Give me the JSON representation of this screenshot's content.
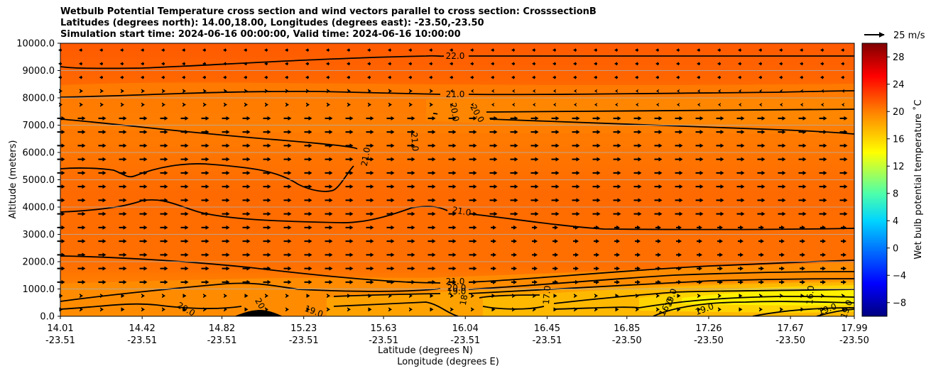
{
  "title_lines": [
    "Wetbulb Potential Temperature cross section and wind vectors parallel to cross section: CrosssectionB",
    "Latitudes (degrees north): 14.00,18.00, Longitudes (degrees east): -23.50,-23.50",
    "Simulation start time: 2024-06-16 00:00:00, Valid time: 2024-06-16 10:00:00"
  ],
  "chart_data": {
    "type": "contourf cross-section with wind vectors",
    "ylabel": "Altitude (meters)",
    "xlabel_lat": "Latitude (degrees N)",
    "xlabel_lon": "Longitude (degrees E)",
    "ylim": [
      0,
      10000
    ],
    "y_ticks": [
      "0.0",
      "1000.0",
      "2000.0",
      "3000.0",
      "4000.0",
      "5000.0",
      "6000.0",
      "7000.0",
      "8000.0",
      "9000.0",
      "10000.0"
    ],
    "x_ticks": [
      {
        "lat": "14.01",
        "lon": "-23.51"
      },
      {
        "lat": "14.42",
        "lon": "-23.51"
      },
      {
        "lat": "14.82",
        "lon": "-23.51"
      },
      {
        "lat": "15.23",
        "lon": "-23.51"
      },
      {
        "lat": "15.63",
        "lon": "-23.51"
      },
      {
        "lat": "16.04",
        "lon": "-23.51"
      },
      {
        "lat": "16.45",
        "lon": "-23.51"
      },
      {
        "lat": "16.85",
        "lon": "-23.50"
      },
      {
        "lat": "17.26",
        "lon": "-23.50"
      },
      {
        "lat": "17.67",
        "lon": "-23.50"
      },
      {
        "lat": "17.99",
        "lon": "-23.50"
      }
    ],
    "colorbar": {
      "label": "Wet bulb potential temperature ˚C",
      "range": [
        -10,
        30
      ],
      "ticks": [
        "28",
        "24",
        "20",
        "16",
        "12",
        "8",
        "4",
        "0",
        "−4",
        "−8"
      ]
    },
    "quiver_key": "25 m/s",
    "contour_labels": [
      "22.0",
      "21.0",
      "20.0",
      "20.0",
      "21.0",
      "21.0",
      "21.0",
      "21.0",
      "20.0",
      "19.0",
      "18",
      "17.0",
      "20.0",
      "20",
      "19.0",
      "16.0",
      "19.0",
      "19.0",
      "16.0",
      "19.0",
      "19.0"
    ],
    "wind_vectors": "mostly southward-to-northward (rightward) flow 5–15 m/s between 0–7500 m; weak leftward flow above 8500 m"
  },
  "colors": {
    "grid": "#b0b0b0",
    "colormap": [
      "#000080",
      "#0000ff",
      "#0080ff",
      "#00ffff",
      "#80ff80",
      "#ffff00",
      "#ff8000",
      "#ff0000",
      "#800000"
    ]
  }
}
